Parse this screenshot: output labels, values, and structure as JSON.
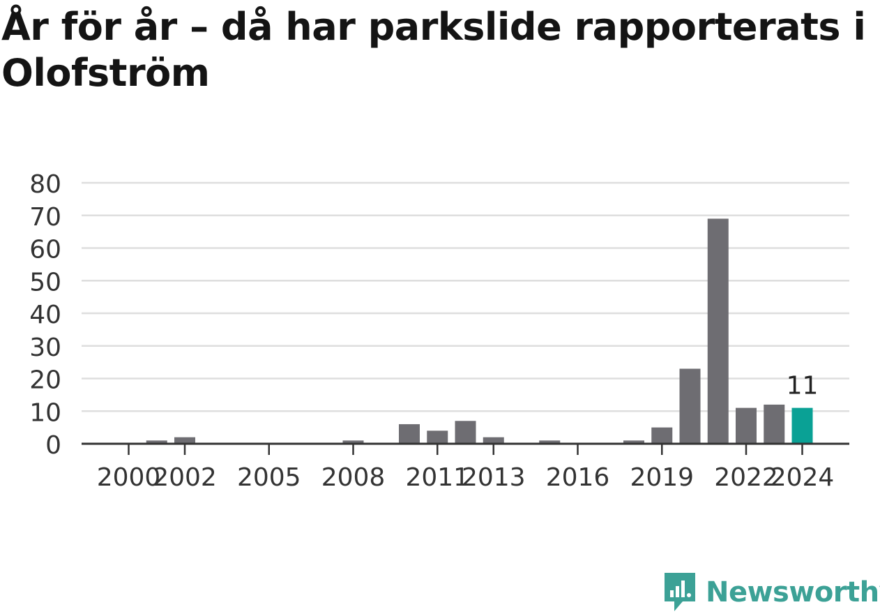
{
  "title": "År för år – då har parkslide rapporterats i Olofström",
  "brand": {
    "name": "Newsworthy",
    "color": "#3ca196"
  },
  "colors": {
    "bar": "#6e6d72",
    "highlight": "#0aa195",
    "grid": "#dedede",
    "axis": "#333333",
    "text": "#333333"
  },
  "chart_data": {
    "type": "bar",
    "x": [
      2000,
      2001,
      2002,
      2003,
      2004,
      2005,
      2006,
      2007,
      2008,
      2009,
      2010,
      2011,
      2012,
      2013,
      2014,
      2015,
      2016,
      2017,
      2018,
      2019,
      2020,
      2021,
      2022,
      2023,
      2024
    ],
    "values": [
      0,
      1,
      2,
      0,
      0,
      0,
      0,
      0,
      1,
      0,
      6,
      4,
      7,
      2,
      0,
      1,
      0,
      0,
      1,
      5,
      23,
      69,
      11,
      12,
      11
    ],
    "xticks": [
      "2000",
      "2002",
      "2005",
      "2008",
      "2011",
      "2013",
      "2016",
      "2019",
      "2022",
      "2024"
    ],
    "yticks": [
      "0",
      "10",
      "20",
      "30",
      "40",
      "50",
      "60",
      "70",
      "80"
    ],
    "ylim": [
      0,
      80
    ],
    "highlight_index": 24,
    "data_labels": [
      {
        "index": 24,
        "text": "11"
      }
    ],
    "grid": true
  }
}
